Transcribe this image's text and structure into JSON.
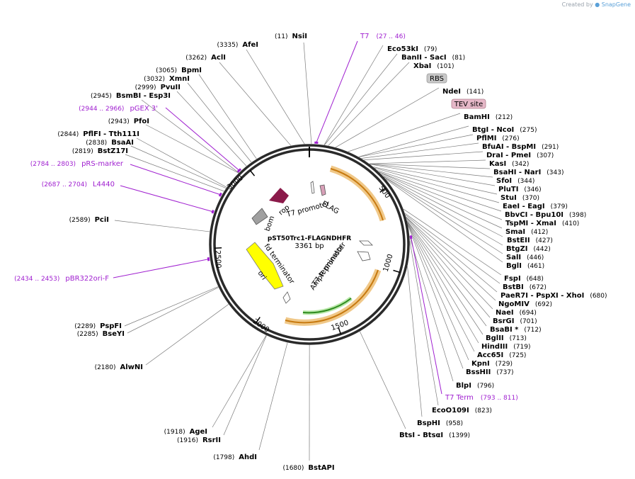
{
  "credit": {
    "prefix": "Created by",
    "brand": "SnapGene"
  },
  "plasmid": {
    "name": "pST50Trc1-FLAGNDHFR",
    "size_label": "3361 bp",
    "length": 3361
  },
  "ticks": [
    "500",
    "1000",
    "1500",
    "2000",
    "2500",
    "3000"
  ],
  "enzymes": [
    {
      "name": "NsiI",
      "pos": "(11)"
    },
    {
      "name": "AfeI",
      "pos": "(3335)"
    },
    {
      "name": "AclI",
      "pos": "(3262)"
    },
    {
      "name": "BpmI",
      "pos": "(3065)"
    },
    {
      "name": "XmnI",
      "pos": "(3032)"
    },
    {
      "name": "PvuII",
      "pos": "(2999)"
    },
    {
      "name": "BsmBI",
      "name2": "Esp3I",
      "pos": "(2945)"
    },
    {
      "name": "PfoI",
      "pos": "(2943)"
    },
    {
      "name": "PflFI",
      "name2": "Tth111I",
      "pos": "(2844)"
    },
    {
      "name": "BsaAI",
      "pos": "(2838)"
    },
    {
      "name": "BstZ17I",
      "pos": "(2819)"
    },
    {
      "name": "PciI",
      "pos": "(2589)"
    },
    {
      "name": "PspFI",
      "pos": "(2289)"
    },
    {
      "name": "BseYI",
      "pos": "(2285)"
    },
    {
      "name": "AlwNI",
      "pos": "(2180)"
    },
    {
      "name": "AgeI",
      "pos": "(1918)"
    },
    {
      "name": "RsrII",
      "pos": "(1916)"
    },
    {
      "name": "AhdI",
      "pos": "(1798)"
    },
    {
      "name": "BstAPI",
      "pos": "(1680)"
    },
    {
      "name": "BtsI",
      "name2": "BtsαI",
      "pos": "(1399)"
    },
    {
      "name": "BspHI",
      "pos": "(958)"
    },
    {
      "name": "EcoO109I",
      "pos": "(823)"
    },
    {
      "name": "BlpI",
      "pos": "(796)"
    },
    {
      "name": "BssHII",
      "pos": "(737)"
    },
    {
      "name": "KpnI",
      "pos": "(729)"
    },
    {
      "name": "Acc65I",
      "pos": "(725)"
    },
    {
      "name": "HindIII",
      "pos": "(719)"
    },
    {
      "name": "BglII",
      "pos": "(713)"
    },
    {
      "name": "BsaBI *",
      "pos": "(712)"
    },
    {
      "name": "BsrGI",
      "pos": "(701)"
    },
    {
      "name": "NaeI",
      "pos": "(694)"
    },
    {
      "name": "NgoMIV",
      "pos": "(692)"
    },
    {
      "name": "PaeR7I",
      "name2": "PspXI",
      "name3": "XhoI",
      "pos": "(680)"
    },
    {
      "name": "BstBI",
      "pos": "(672)"
    },
    {
      "name": "FspI",
      "pos": "(648)"
    },
    {
      "name": "BglI",
      "pos": "(461)"
    },
    {
      "name": "SalI",
      "pos": "(446)"
    },
    {
      "name": "BtgZI",
      "pos": "(442)"
    },
    {
      "name": "BstEII",
      "pos": "(427)"
    },
    {
      "name": "SmaI",
      "pos": "(412)"
    },
    {
      "name": "TspMI",
      "name2": "XmaI",
      "pos": "(410)"
    },
    {
      "name": "BbvCI",
      "name2": "Bpu10I",
      "pos": "(398)"
    },
    {
      "name": "EaeI",
      "name2": "EagI",
      "pos": "(379)"
    },
    {
      "name": "StuI",
      "pos": "(370)"
    },
    {
      "name": "PluTI",
      "pos": "(346)"
    },
    {
      "name": "SfoI",
      "pos": "(344)"
    },
    {
      "name": "BsaHI",
      "name2": "NarI",
      "pos": "(343)"
    },
    {
      "name": "KasI",
      "pos": "(342)"
    },
    {
      "name": "DraI",
      "name2": "PmeI",
      "pos": "(307)"
    },
    {
      "name": "BfuAI",
      "name2": "BspMI",
      "pos": "(291)"
    },
    {
      "name": "PflMI",
      "pos": "(276)"
    },
    {
      "name": "BtgI",
      "name2": "NcoI",
      "pos": "(275)"
    },
    {
      "name": "BamHI",
      "pos": "(212)"
    },
    {
      "name": "NdeI",
      "pos": "(141)"
    },
    {
      "name": "XbaI",
      "pos": "(101)"
    },
    {
      "name": "BanII",
      "name2": "SacI",
      "pos": "(81)"
    },
    {
      "name": "Eco53kI",
      "pos": "(79)"
    }
  ],
  "primers": [
    {
      "name": "T7",
      "pos": "(27 .. 46)"
    },
    {
      "name": "pGEX 3'",
      "pos": "(2944 .. 2966)"
    },
    {
      "name": "pRS-marker",
      "pos": "(2784 .. 2803)"
    },
    {
      "name": "L4440",
      "pos": "(2687 .. 2704)"
    },
    {
      "name": "pBR322ori-F",
      "pos": "(2434 .. 2453)"
    },
    {
      "name": "T7 Term",
      "pos": "(793 .. 811)"
    }
  ],
  "boxed_features": [
    {
      "name": "RBS",
      "color": "#c8c8c8"
    },
    {
      "name": "TEV site",
      "color": "#e6b8c8"
    }
  ],
  "features": [
    {
      "name": "FLAG"
    },
    {
      "name": "T7 promoter"
    },
    {
      "name": "rop"
    },
    {
      "name": "bom"
    },
    {
      "name": "fd terminator"
    },
    {
      "name": "ori"
    },
    {
      "name": "T7 terminator"
    },
    {
      "name": "AmpR promoter"
    }
  ],
  "colors": {
    "enzyme_label": "#000000",
    "primer": "#a020d0",
    "backbone": "#333333",
    "ampr_arc": "#e8a030",
    "orf_arc": "#40b030",
    "rop": "#8b1a4a",
    "ori": "#ffff00",
    "bom": "#a0a0a0"
  }
}
